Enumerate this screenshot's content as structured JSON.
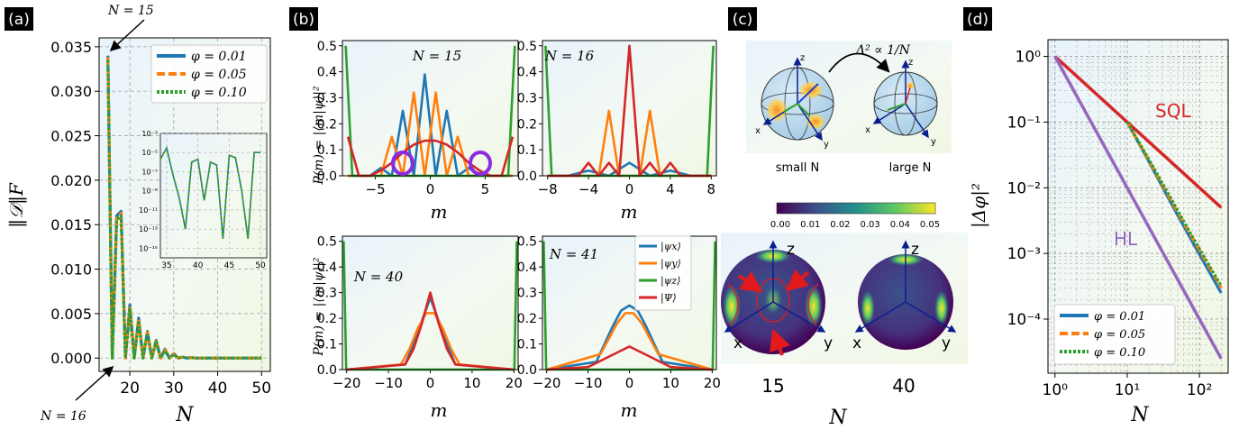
{
  "panels": {
    "a": {
      "label": "(a)",
      "ylabel": "‖𝒟‖F",
      "xlabel": "N",
      "yticks": [
        "0.000",
        "0.005",
        "0.010",
        "0.015",
        "0.020",
        "0.025",
        "0.030",
        "0.035"
      ],
      "xticks": [
        "20",
        "30",
        "40",
        "50"
      ],
      "annot_top": "N = 15",
      "annot_bottom": "N = 16",
      "legend": [
        "φ = 0.01",
        "φ = 0.05",
        "φ = 0.10"
      ],
      "inset_yticks": [
        "10⁻³",
        "10⁻⁵",
        "10⁻⁷",
        "10⁻⁹",
        "10⁻¹¹",
        "10⁻¹³",
        "10⁻¹⁵"
      ],
      "inset_xticks": [
        "35",
        "40",
        "45",
        "50"
      ]
    },
    "b": {
      "label": "(b)",
      "ylabel": "P(m) = |⟨m|ψ⟩|²",
      "xlabel": "m",
      "subplots": [
        {
          "title": "N = 15",
          "xticks": [
            "−5",
            "0",
            "5"
          ]
        },
        {
          "title": "N = 16",
          "xticks": [
            "−8",
            "−4",
            "0",
            "4",
            "8"
          ]
        },
        {
          "title": "N = 40",
          "xticks": [
            "−20",
            "−10",
            "0",
            "10",
            "20"
          ]
        },
        {
          "title": "N = 41",
          "xticks": [
            "−20",
            "−10",
            "0",
            "10",
            "20"
          ]
        }
      ],
      "yticks": [
        "0.0",
        "0.1",
        "0.2",
        "0.3",
        "0.4",
        "0.5"
      ],
      "legend": [
        "|ψx⟩",
        "|ψy⟩",
        "|ψz⟩",
        "|Ψ⟩"
      ]
    },
    "c": {
      "label": "(c)",
      "top_annotation": "Δ² ∝ 1/N",
      "small_label": "small N",
      "large_label": "large N",
      "colorbar_ticks": [
        "0.00",
        "0.01",
        "0.02",
        "0.03",
        "0.04",
        "0.05"
      ],
      "sphere_left_N": "15",
      "sphere_right_N": "40",
      "xlabel": "N",
      "axes": {
        "x": "x",
        "y": "y",
        "z": "z"
      }
    },
    "d": {
      "label": "(d)",
      "ylabel": "|Δφ|²",
      "xlabel": "N",
      "yticks": [
        "10⁰",
        "10⁻¹",
        "10⁻²",
        "10⁻³",
        "10⁻⁴"
      ],
      "xticks": [
        "10⁰",
        "10¹",
        "10²"
      ],
      "sql_label": "SQL",
      "hl_label": "HL",
      "legend": [
        "φ = 0.01",
        "φ = 0.05",
        "φ = 0.10"
      ]
    }
  },
  "colors": {
    "blue": "#1f77b4",
    "orange": "#ff7f0e",
    "green": "#2ca02c",
    "red": "#d62728",
    "purple": "#9467bd",
    "violet": "#8b2be2"
  },
  "chart_data": [
    {
      "type": "line",
      "panel": "a",
      "xlabel": "N",
      "ylabel": "‖𝒟‖F",
      "xlim": [
        13,
        52
      ],
      "ylim": [
        -0.0015,
        0.036
      ],
      "x": [
        15,
        16,
        17,
        18,
        19,
        20,
        21,
        22,
        23,
        24,
        25,
        26,
        27,
        28,
        29,
        30,
        31,
        32,
        33,
        34,
        35,
        40,
        45,
        50
      ],
      "series": [
        {
          "name": "φ = 0.01",
          "values": [
            0.034,
            0.0,
            0.016,
            0.0165,
            0.0,
            0.006,
            0.0,
            0.0045,
            0.0,
            0.003,
            0.0,
            0.002,
            0.0,
            0.001,
            0.0,
            0.0005,
            0.0,
            0.0001,
            0.0,
            5e-05,
            0.0,
            0.0,
            0.0,
            0.0
          ]
        },
        {
          "name": "φ = 0.05",
          "values": [
            0.0338,
            0.0,
            0.0158,
            0.0163,
            0.0,
            0.0058,
            0.0,
            0.0044,
            0.0,
            0.0029,
            0.0,
            0.0019,
            0.0,
            0.0009,
            0.0,
            0.0005,
            0.0,
            0.0001,
            0.0,
            5e-05,
            0.0,
            0.0,
            0.0,
            0.0
          ]
        },
        {
          "name": "φ = 0.10",
          "values": [
            0.0335,
            0.0,
            0.0155,
            0.016,
            0.0,
            0.0055,
            0.0,
            0.0042,
            0.0,
            0.0028,
            0.0,
            0.0018,
            0.0,
            0.0008,
            0.0,
            0.0004,
            0.0,
            0.0001,
            0.0,
            4e-05,
            0.0,
            0.0,
            0.0,
            0.0
          ]
        }
      ]
    },
    {
      "type": "line",
      "panel": "a-inset",
      "log_y": true,
      "xlim": [
        34,
        51
      ],
      "ylim": [
        1e-16,
        0.001
      ],
      "x": [
        34,
        35,
        36,
        37,
        38,
        39,
        40,
        41,
        42,
        43,
        44,
        45,
        46,
        47,
        48,
        49,
        50
      ],
      "values": [
        2e-06,
        3e-05,
        5e-08,
        2e-10,
        1e-13,
        1e-06,
        2e-06,
        1e-10,
        1e-06,
        5e-07,
        1e-14,
        5e-06,
        3e-06,
        1e-09,
        1e-14,
        1e-05,
        1e-05
      ]
    },
    {
      "type": "line",
      "panel": "b",
      "subplot": "N = 15",
      "xlim": [
        -8,
        8
      ],
      "ylim": [
        0,
        0.52
      ],
      "series": [
        {
          "name": "|ψx⟩",
          "x": [
            -7.5,
            -6.5,
            -5.5,
            -4.5,
            -3.5,
            -2.5,
            -1.5,
            -0.5,
            0.5,
            1.5,
            2.5,
            3.5,
            4.5,
            5.5,
            6.5,
            7.5
          ],
          "values": [
            0.0,
            0.0,
            0.0,
            0.03,
            0.0,
            0.25,
            0.0,
            0.39,
            0.0,
            0.25,
            0.0,
            0.03,
            0.0,
            0.0,
            0.0,
            0.0
          ]
        },
        {
          "name": "|ψy⟩",
          "x": [
            -7.5,
            -6.5,
            -5.5,
            -4.5,
            -3.5,
            -2.5,
            -1.5,
            -0.5,
            0.5,
            1.5,
            2.5,
            3.5,
            4.5,
            5.5,
            6.5,
            7.5
          ],
          "values": [
            0.0,
            0.0,
            0.0,
            0.0,
            0.15,
            0.0,
            0.32,
            0.0,
            0.32,
            0.0,
            0.15,
            0.0,
            0.0,
            0.0,
            0.0,
            0.0
          ]
        },
        {
          "name": "|ψz⟩",
          "x": [
            -7.5,
            7.5
          ],
          "values": [
            0.5,
            0.5
          ]
        },
        {
          "name": "|Ψ⟩",
          "x": [
            -7.5,
            -6.5,
            -5.5,
            -4.5,
            -3.5,
            -2.5,
            -1.5,
            -0.5,
            0.5,
            1.5,
            2.5,
            3.5,
            4.5,
            5.5,
            6.5,
            7.5
          ],
          "values": [
            0.15,
            0.0,
            0.0,
            0.02,
            0.05,
            0.09,
            0.12,
            0.135,
            0.135,
            0.12,
            0.09,
            0.05,
            0.02,
            0.0,
            0.0,
            0.15
          ]
        }
      ]
    },
    {
      "type": "line",
      "panel": "b",
      "subplot": "N = 16",
      "xlim": [
        -8.5,
        8.5
      ],
      "ylim": [
        0,
        0.52
      ],
      "series": [
        {
          "name": "|ψx⟩",
          "x": [
            -8,
            -6,
            -4,
            -2,
            0,
            2,
            4,
            6,
            8
          ],
          "values": [
            0.0,
            0.0,
            0.02,
            0.0,
            0.05,
            0.0,
            0.02,
            0.0,
            0.0
          ]
        },
        {
          "name": "|ψy⟩",
          "x": [
            -8,
            -6,
            -4,
            -3,
            -2,
            -1,
            0,
            1,
            2,
            3,
            4,
            6,
            8
          ],
          "values": [
            0.0,
            0.0,
            0.0,
            0.0,
            0.25,
            0.0,
            0.0,
            0.0,
            0.25,
            0.0,
            0.0,
            0.0,
            0.0
          ]
        },
        {
          "name": "|ψz⟩",
          "x": [
            -8,
            8
          ],
          "values": [
            0.5,
            0.5
          ]
        },
        {
          "name": "|Ψ⟩",
          "x": [
            -8,
            -7,
            -6,
            -5,
            -4,
            -3,
            -2,
            -1,
            0,
            1,
            2,
            3,
            4,
            5,
            6,
            7,
            8
          ],
          "values": [
            0.0,
            0.0,
            0.0,
            0.0,
            0.05,
            0.0,
            0.05,
            0.0,
            0.5,
            0.0,
            0.05,
            0.0,
            0.05,
            0.0,
            0.0,
            0.0,
            0.0
          ]
        }
      ]
    },
    {
      "type": "line",
      "panel": "b",
      "subplot": "N = 40",
      "xlim": [
        -21,
        21
      ],
      "ylim": [
        0,
        0.52
      ],
      "series": [
        {
          "name": "|ψx⟩",
          "x": [
            -20,
            -6,
            -4,
            -2,
            0,
            2,
            4,
            6,
            20
          ],
          "values": [
            0.0,
            0.02,
            0.1,
            0.19,
            0.28,
            0.19,
            0.1,
            0.02,
            0.0
          ]
        },
        {
          "name": "|ψy⟩",
          "x": [
            -20,
            -7,
            -5,
            -3,
            -1,
            1,
            3,
            5,
            7,
            20
          ],
          "values": [
            0.0,
            0.02,
            0.08,
            0.16,
            0.22,
            0.22,
            0.16,
            0.08,
            0.02,
            0.0
          ]
        },
        {
          "name": "|ψz⟩",
          "x": [
            -20,
            20
          ],
          "values": [
            0.5,
            0.5
          ]
        },
        {
          "name": "|Ψ⟩",
          "x": [
            -20,
            -6,
            -4,
            -2,
            0,
            2,
            4,
            6,
            20
          ],
          "values": [
            0.0,
            0.02,
            0.08,
            0.18,
            0.3,
            0.18,
            0.08,
            0.02,
            0.0
          ]
        }
      ]
    },
    {
      "type": "line",
      "panel": "b",
      "subplot": "N = 41",
      "xlim": [
        -21,
        21
      ],
      "ylim": [
        0,
        0.52
      ],
      "series": [
        {
          "name": "|ψx⟩",
          "x": [
            -20,
            -8,
            -6,
            -4,
            -2,
            0,
            2,
            4,
            6,
            8,
            20
          ],
          "values": [
            0.0,
            0.03,
            0.1,
            0.17,
            0.23,
            0.25,
            0.23,
            0.17,
            0.1,
            0.03,
            0.0
          ]
        },
        {
          "name": "|ψy⟩",
          "x": [
            -20,
            -7,
            -5,
            -3,
            -1,
            1,
            3,
            5,
            7,
            20
          ],
          "values": [
            0.0,
            0.06,
            0.12,
            0.18,
            0.22,
            0.22,
            0.18,
            0.12,
            0.06,
            0.0
          ]
        },
        {
          "name": "|ψz⟩",
          "x": [
            -20,
            20
          ],
          "values": [
            0.5,
            0.5
          ]
        },
        {
          "name": "|Ψ⟩",
          "x": [
            -20,
            -10,
            -5,
            0,
            5,
            10,
            20
          ],
          "values": [
            0.0,
            0.01,
            0.05,
            0.09,
            0.05,
            0.01,
            0.0
          ]
        }
      ]
    },
    {
      "type": "line",
      "panel": "d",
      "log_x": true,
      "log_y": true,
      "xlabel": "N",
      "ylabel": "|Δφ|²",
      "xlim": [
        0.8,
        250
      ],
      "ylim": [
        1.5e-05,
        1.8
      ],
      "series": [
        {
          "name": "SQL",
          "x": [
            1,
            200
          ],
          "values": [
            1.0,
            0.005
          ]
        },
        {
          "name": "HL",
          "x": [
            1,
            200
          ],
          "values": [
            1.0,
            2.5e-05
          ]
        },
        {
          "name": "φ = 0.01",
          "x": [
            10,
            20,
            40,
            80,
            200
          ],
          "values": [
            0.1,
            0.025,
            0.006,
            0.0015,
            0.00025
          ]
        },
        {
          "name": "φ = 0.05",
          "x": [
            10,
            20,
            40,
            80,
            200
          ],
          "values": [
            0.1,
            0.026,
            0.0065,
            0.0017,
            0.0003
          ]
        },
        {
          "name": "φ = 0.10",
          "x": [
            10,
            20,
            40,
            80,
            200
          ],
          "values": [
            0.1,
            0.027,
            0.007,
            0.0018,
            0.00032
          ]
        }
      ]
    }
  ]
}
